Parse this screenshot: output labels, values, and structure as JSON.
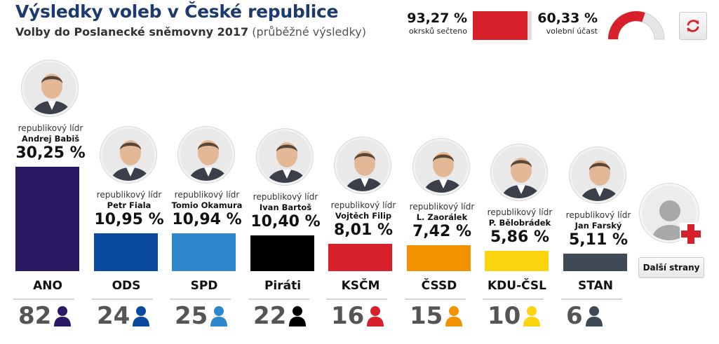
{
  "header": {
    "title": "Výsledky voleb v České republice",
    "subtitle_main": "Volby do Poslanecké sněmovny 2017",
    "subtitle_note": "(průběžné výsledky)"
  },
  "stats": {
    "counted": {
      "value": "93,27 %",
      "label": "okrsků sečteno",
      "fraction": 0.9327,
      "color": "#d8202a"
    },
    "turnout": {
      "value": "60,33 %",
      "label": "volební účast",
      "fraction": 0.6033,
      "color": "#d8202a"
    }
  },
  "refresh": {
    "icon": "refresh-icon"
  },
  "parties": [
    {
      "id": "ano",
      "name": "ANO",
      "pct": "30,25 %",
      "value": 30.25,
      "seats": "82",
      "color": "#2b1a63",
      "leader_role": "republikový lídr",
      "leader": "Andrej Babiš"
    },
    {
      "id": "ods",
      "name": "ODS",
      "pct": "10,95 %",
      "value": 10.95,
      "seats": "24",
      "color": "#0a4a9c",
      "leader_role": "republikový lídr",
      "leader": "Petr Fiala"
    },
    {
      "id": "spd",
      "name": "SPD",
      "pct": "10,94 %",
      "value": 10.94,
      "seats": "25",
      "color": "#2e86cc",
      "leader_role": "republikový lídr",
      "leader": "Tomio Okamura"
    },
    {
      "id": "pirati",
      "name": "Piráti",
      "pct": "10,40 %",
      "value": 10.4,
      "seats": "22",
      "color": "#000000",
      "leader_role": "republikový lídr",
      "leader": "Ivan Bartoš"
    },
    {
      "id": "kscm",
      "name": "KSČM",
      "pct": "8,01 %",
      "value": 8.01,
      "seats": "16",
      "color": "#d8202a",
      "leader_role": "republikový lídr",
      "leader": "Vojtěch Filip"
    },
    {
      "id": "cssd",
      "name": "ČSSD",
      "pct": "7,42 %",
      "value": 7.42,
      "seats": "15",
      "color": "#f39200",
      "leader_role": "republikový lídr",
      "leader": "L. Zaorálek"
    },
    {
      "id": "kducsl",
      "name": "KDU-ČSL",
      "pct": "5,86 %",
      "value": 5.86,
      "seats": "10",
      "color": "#fbd40f",
      "leader_role": "republikový lídr",
      "leader": "P. Bělobrádek"
    },
    {
      "id": "stan",
      "name": "STAN",
      "pct": "5,11 %",
      "value": 5.11,
      "seats": "6",
      "color": "#3f4a56",
      "leader_role": "republikový lídr",
      "leader": "Jan Farský"
    }
  ],
  "more": {
    "label": "Další strany",
    "icon": "add-party-icon"
  }
}
